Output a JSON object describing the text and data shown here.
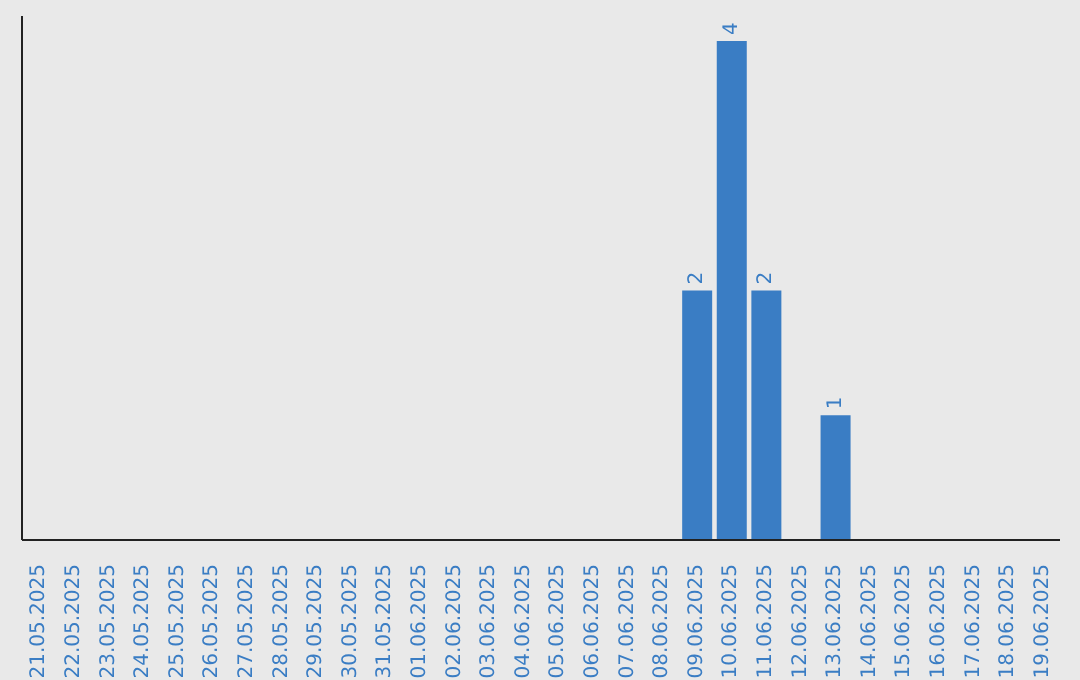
{
  "chart_data": {
    "type": "bar",
    "categories": [
      "21.05.2025",
      "22.05.2025",
      "23.05.2025",
      "24.05.2025",
      "25.05.2025",
      "26.05.2025",
      "27.05.2025",
      "28.05.2025",
      "29.05.2025",
      "30.05.2025",
      "31.05.2025",
      "01.06.2025",
      "02.06.2025",
      "03.06.2025",
      "04.06.2025",
      "05.06.2025",
      "06.06.2025",
      "07.06.2025",
      "08.06.2025",
      "09.06.2025",
      "10.06.2025",
      "11.06.2025",
      "12.06.2025",
      "13.06.2025",
      "14.06.2025",
      "15.06.2025",
      "16.06.2025",
      "17.06.2025",
      "18.06.2025",
      "19.06.2025"
    ],
    "values": [
      null,
      null,
      null,
      null,
      null,
      null,
      null,
      null,
      null,
      null,
      null,
      null,
      null,
      null,
      null,
      null,
      null,
      null,
      null,
      2,
      4,
      2,
      null,
      1,
      null,
      null,
      null,
      null,
      null,
      null
    ],
    "color": "#3a7dc4",
    "ylim": [
      0,
      4.2
    ],
    "data_labels": true,
    "tick_labels": "x"
  }
}
